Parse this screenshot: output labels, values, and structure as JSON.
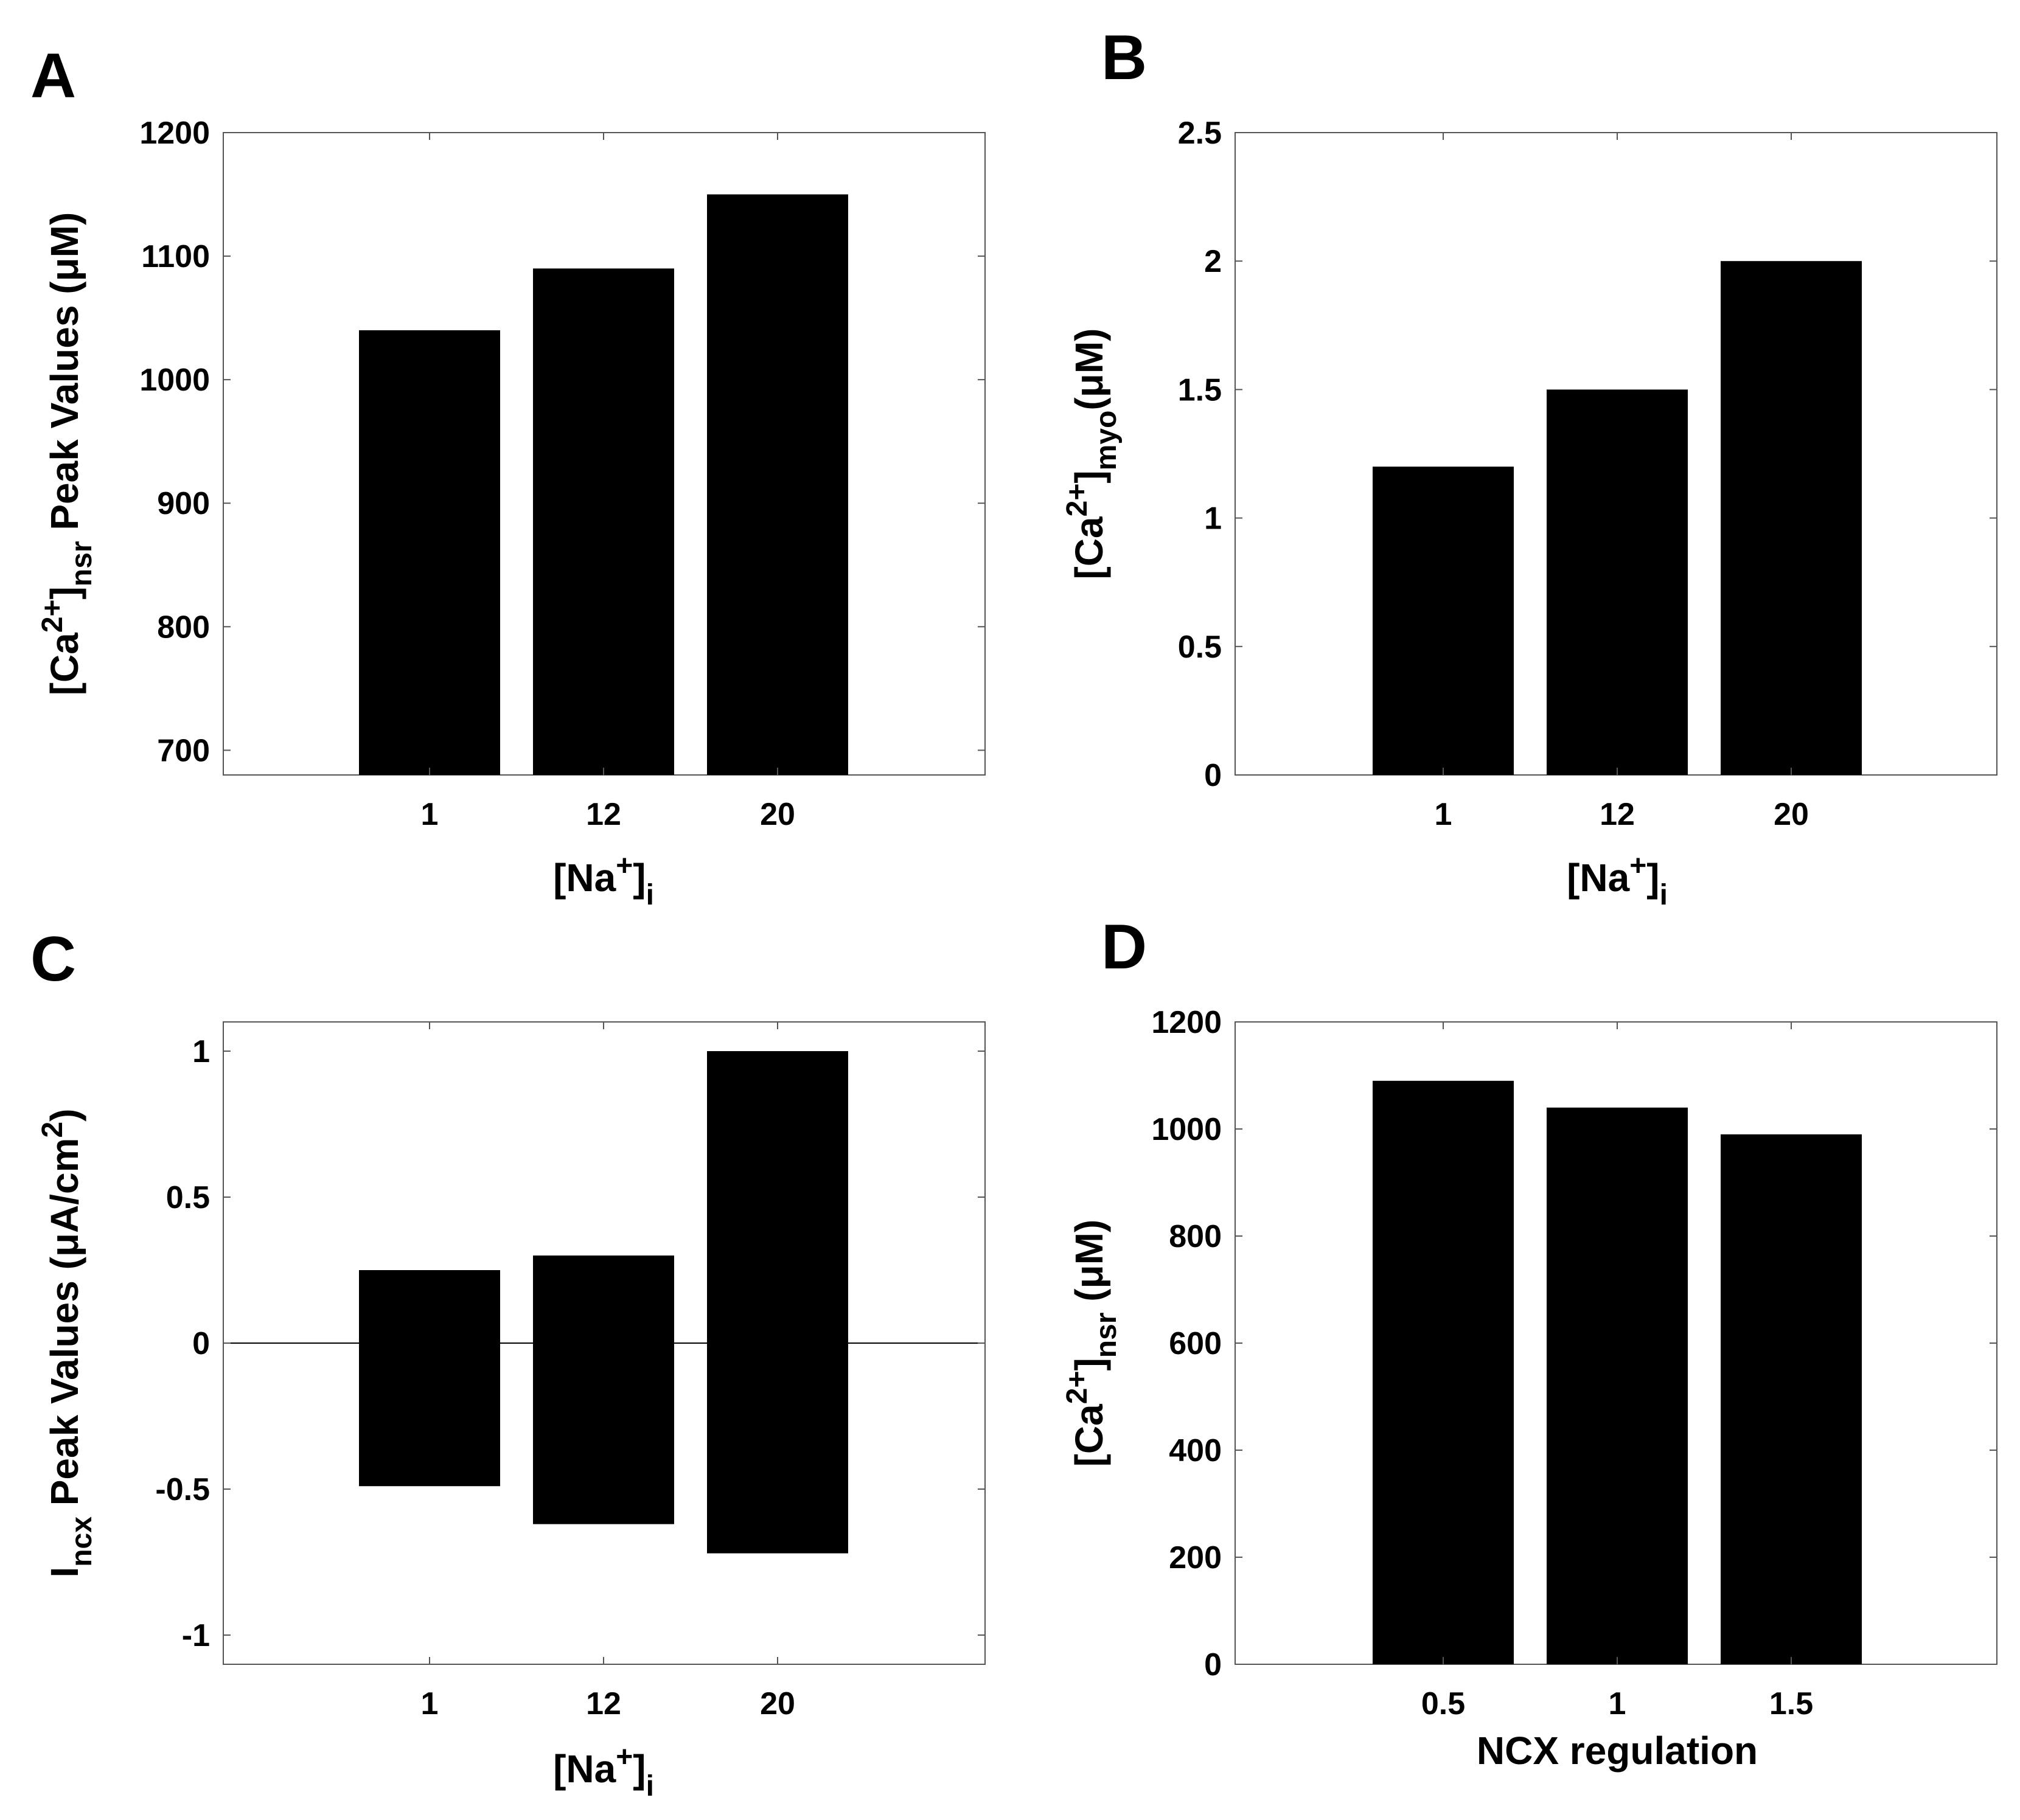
{
  "figure": {
    "panel_letters": [
      "A",
      "B",
      "C",
      "D"
    ]
  },
  "chart_data": [
    {
      "panel": "A",
      "type": "bar",
      "categories": [
        "1",
        "12",
        "20"
      ],
      "values": [
        1040,
        1090,
        1150
      ],
      "xlabel": "[Na+]i",
      "ylabel": "[Ca2+]nsr Peak Values (μM)",
      "ylim": [
        680,
        1200
      ],
      "yticks": [
        700,
        800,
        900,
        1000,
        1100,
        1200
      ],
      "color": "#000000",
      "x_label_parts": {
        "main": "[Na",
        "sup": "+",
        "close": "]",
        "sub": "i"
      },
      "y_label_parts": {
        "pre": "[Ca",
        "sup": "2+",
        "close": "]",
        "sub": "nsr",
        "post": " Peak Values (",
        "mu": "μ",
        "unit": "M)"
      }
    },
    {
      "panel": "B",
      "type": "bar",
      "categories": [
        "1",
        "12",
        "20"
      ],
      "values": [
        1.2,
        1.5,
        2.0
      ],
      "xlabel": "[Na+]i",
      "ylabel": "[Ca2+]myo (μM)",
      "ylim": [
        0,
        2.5
      ],
      "yticks": [
        0,
        0.5,
        1,
        1.5,
        2,
        2.5
      ],
      "color": "#000000",
      "x_label_parts": {
        "main": "[Na",
        "sup": "+",
        "close": "]",
        "sub": "i"
      },
      "y_label_parts": {
        "pre": "[Ca",
        "sup": "2+",
        "close": "]",
        "sub": "myo",
        "post": "(",
        "mu": "μ",
        "unit": "M)"
      }
    },
    {
      "panel": "C",
      "type": "bar",
      "categories": [
        "1",
        "12",
        "20"
      ],
      "series": [
        {
          "name": "positive peak",
          "values": [
            0.25,
            0.3,
            1.0
          ]
        },
        {
          "name": "negative peak",
          "values": [
            -0.49,
            -0.62,
            -0.72
          ]
        }
      ],
      "xlabel": "[Na+]i",
      "ylabel": "Incx Peak Values (μA/cm2)",
      "ylim": [
        -1.1,
        1.1
      ],
      "yticks": [
        -1,
        -0.5,
        0,
        0.5,
        1
      ],
      "zero_line": true,
      "color": "#000000",
      "x_label_parts": {
        "main": "[Na",
        "sup": "+",
        "close": "]",
        "sub": "i"
      },
      "y_label_parts": {
        "pre": "I",
        "sub": "ncx",
        "post": " Peak Values (",
        "mu": "μ",
        "unit": "A/cm",
        "sup": "2",
        "close": ")"
      }
    },
    {
      "panel": "D",
      "type": "bar",
      "categories": [
        "0.5",
        "1",
        "1.5"
      ],
      "values": [
        1090,
        1040,
        990
      ],
      "xlabel": "NCX regulation",
      "ylabel": "[Ca2+]nsr (μM)",
      "ylim": [
        0,
        1200
      ],
      "yticks": [
        0,
        200,
        400,
        600,
        800,
        1000,
        1200
      ],
      "color": "#000000",
      "x_label_parts": {
        "main": "NCX regulation"
      },
      "y_label_parts": {
        "pre": "[Ca",
        "sup": "2+",
        "close": "]",
        "sub": "nsr",
        "post": " (",
        "mu": "μ",
        "unit": "M)"
      }
    }
  ]
}
